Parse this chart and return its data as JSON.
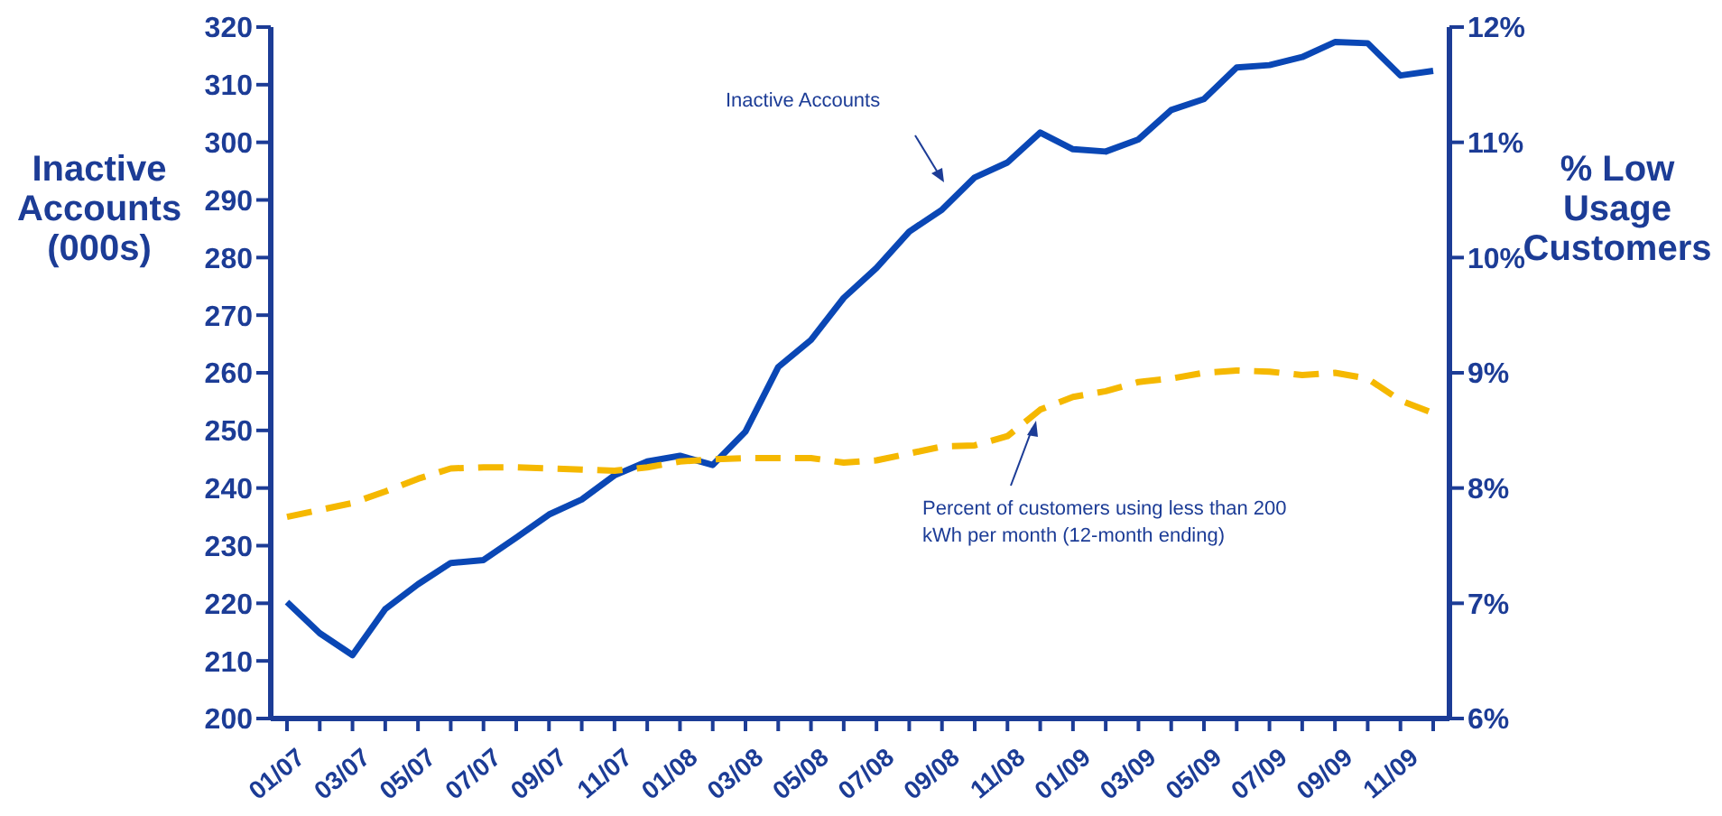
{
  "chart_data": {
    "type": "line",
    "ylabel": "Inactive Accounts (000s)",
    "y2label": "% Low Usage Customers",
    "categories": [
      "01/07",
      null,
      "03/07",
      null,
      "05/07",
      null,
      "07/07",
      null,
      "09/07",
      null,
      "11/07",
      null,
      "01/08",
      null,
      "03/08",
      null,
      "05/08",
      null,
      "07/08",
      null,
      "09/08",
      null,
      "11/08",
      null,
      "01/09",
      null,
      "03/09",
      null,
      "05/09",
      null,
      "07/09",
      null,
      "09/09",
      null,
      "11/09",
      null
    ],
    "series": [
      {
        "color": "#0a47b5",
        "line_style": "solid",
        "values": [
          220.2,
          214.8,
          211,
          219,
          223.3,
          227,
          227.5,
          231.4,
          235.4,
          238,
          242.2,
          244.6,
          245.6,
          244,
          249.8,
          261,
          265.7,
          273,
          278.2,
          284.5,
          288.3,
          293.9,
          296.5,
          301.7,
          298.8,
          298.4,
          300.5,
          305.6,
          307.5,
          313,
          313.4,
          314.8,
          317.4,
          317.2,
          311.6,
          312.4
        ]
      },
      {
        "color": "#f5b800",
        "line_style": "dashed",
        "axis": "y2",
        "values": [
          7.75,
          7.81,
          7.87,
          7.97,
          8.08,
          8.17,
          8.18,
          8.18,
          8.17,
          8.16,
          8.15,
          8.18,
          8.23,
          8.25,
          8.26,
          8.26,
          8.26,
          8.22,
          8.24,
          8.3,
          8.36,
          8.37,
          8.45,
          8.68,
          8.79,
          8.84,
          8.92,
          8.95,
          9.0,
          9.02,
          9.01,
          8.98,
          9.0,
          8.95,
          8.76,
          8.65
        ]
      }
    ],
    "ylim": [
      200,
      320
    ],
    "yticks": [
      200,
      210,
      220,
      230,
      240,
      250,
      260,
      270,
      280,
      290,
      300,
      310,
      320
    ],
    "y2lim": [
      6,
      12
    ],
    "y2ticks": [
      {
        "value": 6,
        "label": "6%"
      },
      {
        "value": 7,
        "label": "7%"
      },
      {
        "value": 8,
        "label": "8%"
      },
      {
        "value": 9,
        "label": "9%"
      },
      {
        "value": 10,
        "label": "10%"
      },
      {
        "value": 11,
        "label": "11%"
      },
      {
        "value": 12,
        "label": "12%"
      }
    ],
    "marker": "none",
    "annotations": [
      "Inactive Accounts",
      "Percent of customers using less than 200 kWh per month (12-month ending)"
    ]
  }
}
